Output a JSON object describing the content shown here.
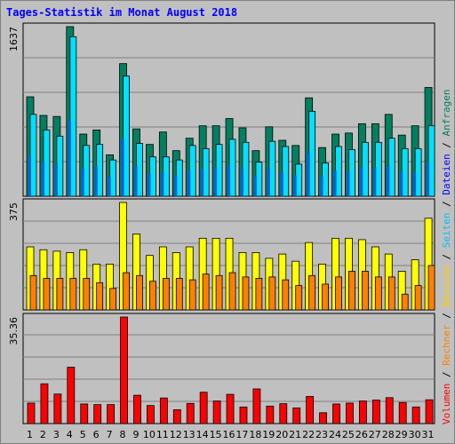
{
  "title": "Tages-Statistik im Monat August 2018",
  "chart_data": [
    {
      "type": "bar",
      "panel": "top",
      "ymax_label": "1637",
      "ylim": [
        0,
        1637
      ],
      "categories": [
        "1",
        "2",
        "3",
        "4",
        "5",
        "6",
        "7",
        "8",
        "9",
        "10",
        "11",
        "12",
        "13",
        "14",
        "15",
        "16",
        "17",
        "18",
        "19",
        "20",
        "21",
        "22",
        "23",
        "24",
        "25",
        "26",
        "27",
        "28",
        "29",
        "30",
        "31"
      ],
      "weekend_days": [
        "4",
        "5",
        "11",
        "12",
        "18",
        "19",
        "25",
        "26"
      ],
      "series": [
        {
          "name": "Anfragen",
          "color": "#008060",
          "values": [
            960,
            780,
            770,
            1637,
            600,
            640,
            400,
            1280,
            650,
            500,
            620,
            440,
            560,
            680,
            680,
            750,
            660,
            440,
            670,
            540,
            490,
            950,
            470,
            600,
            610,
            700,
            700,
            790,
            590,
            680,
            1050
          ]
        },
        {
          "name": "Dateien",
          "color": "#00e0ff",
          "values": [
            790,
            640,
            580,
            1540,
            490,
            500,
            350,
            1160,
            510,
            380,
            380,
            350,
            490,
            460,
            500,
            550,
            520,
            330,
            530,
            480,
            310,
            820,
            320,
            480,
            450,
            520,
            520,
            560,
            460,
            460,
            680
          ]
        },
        {
          "name": "Seiten",
          "color": "#0060e0",
          "values": [
            390,
            330,
            310,
            730,
            270,
            290,
            190,
            560,
            290,
            220,
            230,
            200,
            250,
            260,
            280,
            300,
            270,
            190,
            270,
            230,
            200,
            420,
            190,
            250,
            240,
            280,
            280,
            290,
            240,
            230,
            330
          ]
        }
      ]
    },
    {
      "type": "bar",
      "panel": "middle",
      "ymax_label": "375",
      "ylim": [
        0,
        375
      ],
      "series": [
        {
          "name": "Besuche",
          "color": "#ffff00",
          "values": [
            220,
            210,
            205,
            200,
            210,
            160,
            160,
            375,
            265,
            190,
            220,
            200,
            220,
            250,
            250,
            250,
            200,
            200,
            180,
            195,
            170,
            235,
            160,
            250,
            250,
            245,
            220,
            195,
            135,
            175,
            320
          ]
        },
        {
          "name": "Rechner",
          "color": "#ff8000",
          "values": [
            120,
            110,
            110,
            110,
            110,
            95,
            75,
            130,
            120,
            100,
            110,
            110,
            105,
            125,
            120,
            130,
            115,
            110,
            115,
            105,
            85,
            120,
            90,
            115,
            135,
            135,
            115,
            115,
            55,
            85,
            155
          ]
        }
      ]
    },
    {
      "type": "bar",
      "panel": "bottom",
      "ymax_label": "35.36",
      "ylim": [
        0,
        35.36
      ],
      "series": [
        {
          "name": "Volumen",
          "color": "#ff0000",
          "values": [
            6.8,
            13.2,
            9.8,
            18.7,
            6.5,
            6.3,
            6.3,
            35.36,
            9.4,
            6.0,
            8.5,
            4.6,
            6.7,
            10.4,
            7.5,
            9.7,
            5.5,
            11.5,
            5.8,
            6.6,
            5.2,
            9.0,
            3.6,
            6.5,
            6.8,
            7.5,
            7.8,
            8.6,
            7.0,
            5.5,
            7.9
          ]
        }
      ]
    }
  ],
  "legend": [
    {
      "label": "Anfragen",
      "color": "#008060"
    },
    {
      "label": "Dateien",
      "color": "#0000ff"
    },
    {
      "label": "Seiten",
      "color": "#00c0ff"
    },
    {
      "label": "Besuche",
      "color": "#ffcc00"
    },
    {
      "label": "Rechner",
      "color": "#ff8000"
    },
    {
      "label": "Volumen",
      "color": "#ff0000"
    }
  ],
  "legend_separator": " / ",
  "colors": {
    "frame_bg": "#c0c0c0",
    "plot_bg": "#c0c0c0",
    "grid": "#808080",
    "weekday_label": "#000000",
    "weekend_label": "#008040",
    "title": "#0000ff"
  }
}
